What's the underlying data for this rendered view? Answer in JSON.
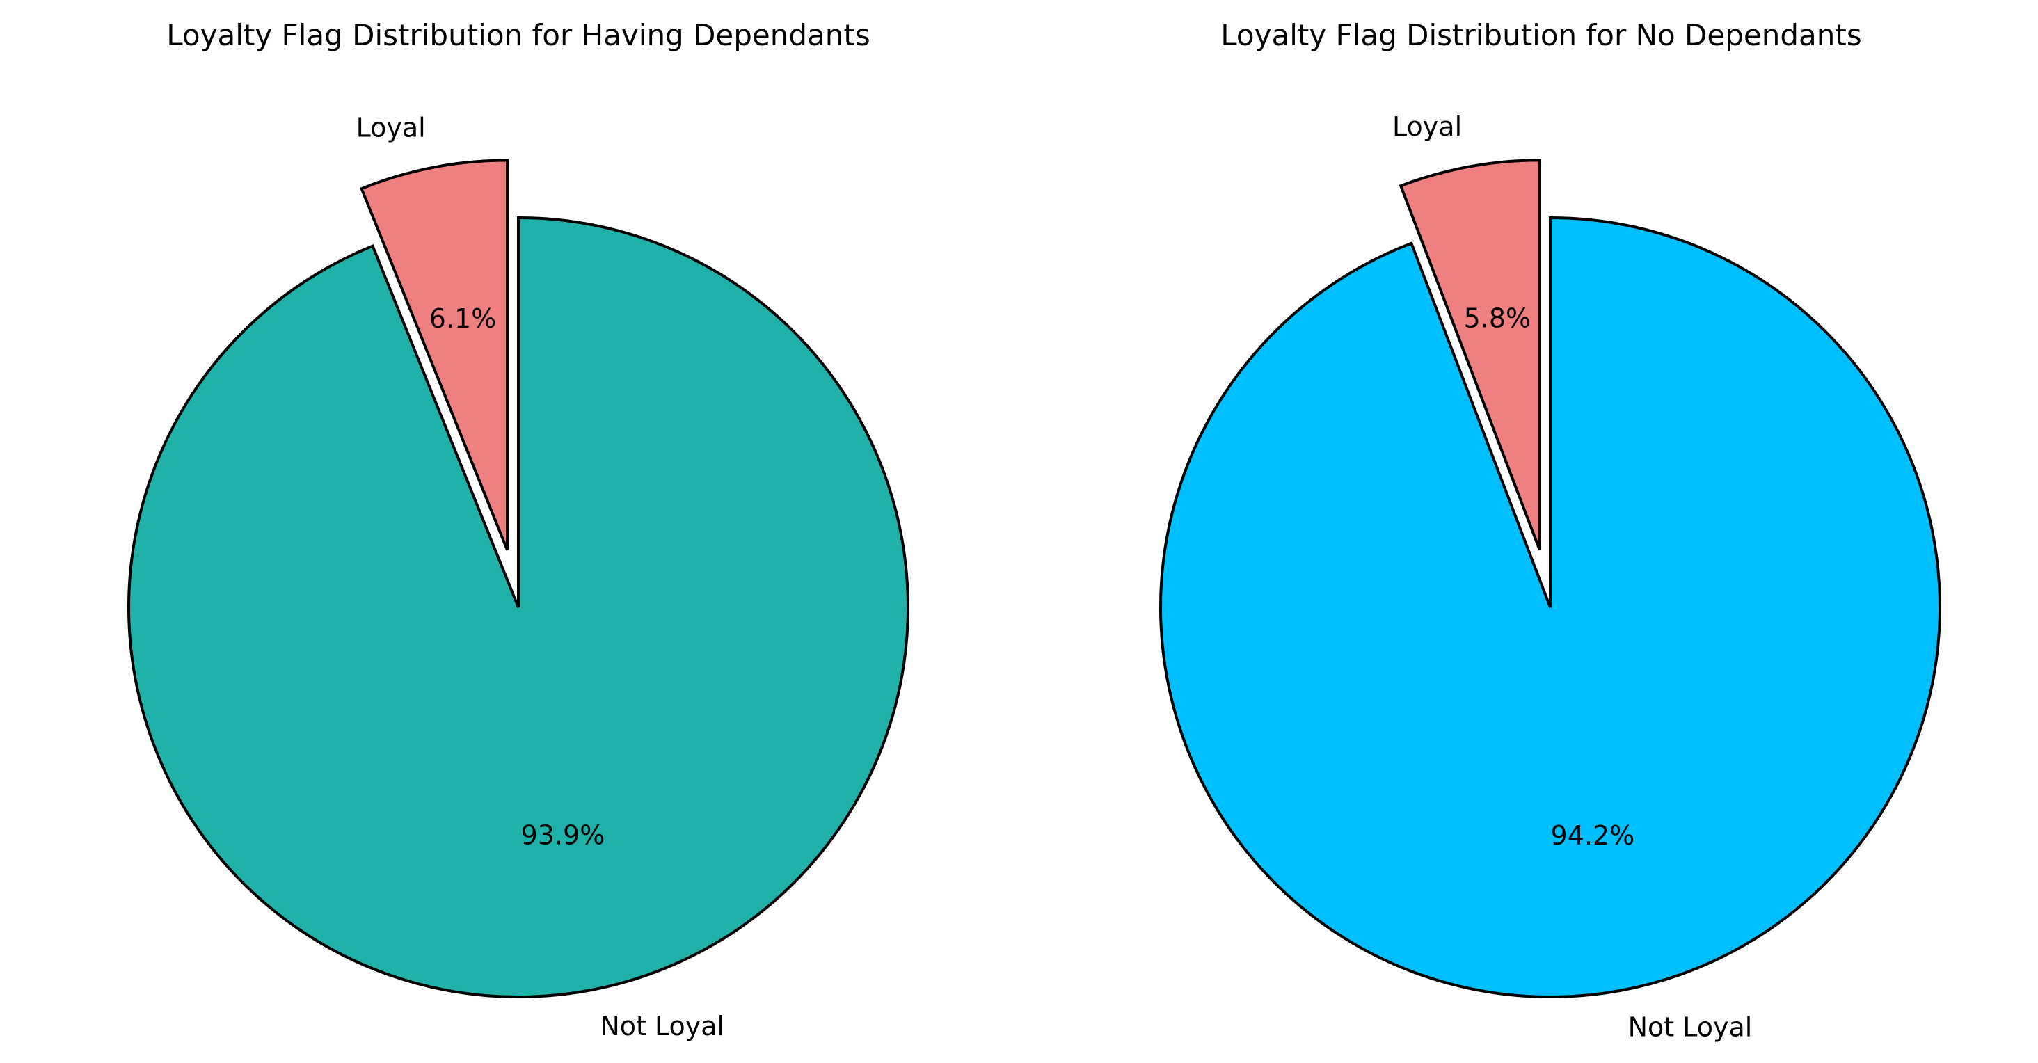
{
  "chart_data": [
    {
      "type": "pie",
      "title": "Loyalty Flag Distribution for Having Dependants",
      "slices": [
        {
          "label": "Loyal",
          "value": 6.1,
          "pct_label": "6.1%",
          "color": "#F08080",
          "exploded": true
        },
        {
          "label": "Not Loyal",
          "value": 93.9,
          "pct_label": "93.9%",
          "color": "#20B2AA",
          "exploded": false
        }
      ],
      "start_angle_deg": 90,
      "direction": "counterclockwise",
      "edge_color": "#000000"
    },
    {
      "type": "pie",
      "title": "Loyalty Flag Distribution for No Dependants",
      "slices": [
        {
          "label": "Loyal",
          "value": 5.8,
          "pct_label": "5.8%",
          "color": "#F08080",
          "exploded": true
        },
        {
          "label": "Not Loyal",
          "value": 94.2,
          "pct_label": "94.2%",
          "color": "#00BFFF",
          "exploded": false
        }
      ],
      "start_angle_deg": 90,
      "direction": "counterclockwise",
      "edge_color": "#000000"
    }
  ]
}
